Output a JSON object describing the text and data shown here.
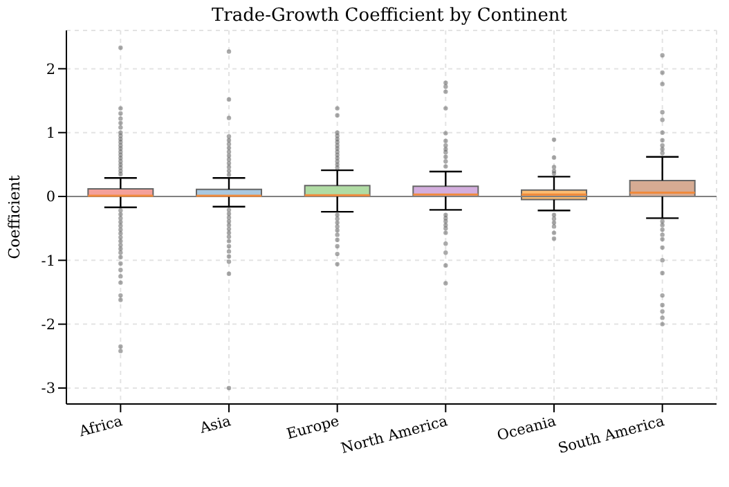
{
  "chart_data": {
    "type": "box",
    "title": "Trade-Growth Coefficient by Continent",
    "ylabel": "Coefficient",
    "categories": [
      "Africa",
      "Asia",
      "Europe",
      "North America",
      "Oceania",
      "South America"
    ],
    "colors": [
      "#f4a09a",
      "#a9c8e0",
      "#b0dca4",
      "#d4aede",
      "#fcbd72",
      "#d6ab93"
    ],
    "boxes": [
      {
        "low": -0.17,
        "q1": 0.0,
        "median": 0.01,
        "q3": 0.12,
        "high": 0.29,
        "outliers": [
          2.33,
          1.38,
          1.3,
          1.22,
          1.15,
          1.08,
          1.0,
          0.95,
          0.9,
          0.85,
          0.8,
          0.75,
          0.7,
          0.65,
          0.6,
          0.55,
          0.5,
          0.45,
          0.4,
          0.35,
          -0.22,
          -0.28,
          -0.34,
          -0.4,
          -0.46,
          -0.52,
          -0.58,
          -0.64,
          -0.7,
          -0.76,
          -0.82,
          -0.88,
          -0.95,
          -1.05,
          -1.15,
          -1.25,
          -1.35,
          -1.55,
          -1.62,
          -2.35,
          -2.42
        ]
      },
      {
        "low": -0.16,
        "q1": 0.0,
        "median": 0.01,
        "q3": 0.11,
        "high": 0.29,
        "outliers": [
          2.27,
          1.52,
          1.23,
          0.94,
          0.88,
          0.82,
          0.76,
          0.7,
          0.64,
          0.58,
          0.52,
          0.46,
          0.4,
          0.34,
          -0.21,
          -0.27,
          -0.33,
          -0.39,
          -0.45,
          -0.51,
          -0.57,
          -0.63,
          -0.7,
          -0.78,
          -0.86,
          -0.94,
          -1.02,
          -1.21,
          -3.0
        ]
      },
      {
        "low": -0.24,
        "q1": 0.0,
        "median": 0.02,
        "q3": 0.17,
        "high": 0.41,
        "outliers": [
          1.38,
          1.27,
          1.0,
          0.95,
          0.9,
          0.85,
          0.8,
          0.75,
          0.7,
          0.65,
          0.6,
          0.55,
          0.5,
          0.45,
          -0.29,
          -0.35,
          -0.41,
          -0.47,
          -0.53,
          -0.6,
          -0.68,
          -0.78,
          -0.9,
          -1.06
        ]
      },
      {
        "low": -0.21,
        "q1": 0.0,
        "median": 0.03,
        "q3": 0.16,
        "high": 0.39,
        "outliers": [
          1.78,
          1.72,
          1.64,
          1.38,
          0.99,
          0.87,
          0.8,
          0.74,
          0.69,
          0.62,
          0.55,
          0.47,
          -0.29,
          -0.34,
          -0.39,
          -0.45,
          -0.5,
          -0.57,
          -0.74,
          -0.88,
          -1.08,
          -1.36
        ]
      },
      {
        "low": -0.22,
        "q1": -0.05,
        "median": 0.03,
        "q3": 0.1,
        "high": 0.31,
        "outliers": [
          0.89,
          0.61,
          0.46,
          0.4,
          0.36,
          -0.29,
          -0.35,
          -0.41,
          -0.47,
          -0.57,
          -0.66
        ]
      },
      {
        "low": -0.34,
        "q1": 0.0,
        "median": 0.06,
        "q3": 0.25,
        "high": 0.62,
        "outliers": [
          2.21,
          1.94,
          1.76,
          1.32,
          1.2,
          1.0,
          0.88,
          0.8,
          0.74,
          0.68,
          -0.39,
          -0.45,
          -0.52,
          -0.6,
          -0.67,
          -0.8,
          -1.0,
          -1.2,
          -1.55,
          -1.7,
          -1.8,
          -1.9,
          -2.0
        ]
      }
    ],
    "ylim": [
      -3.25,
      2.6
    ],
    "yticks": [
      -3,
      -2,
      -1,
      0,
      1,
      2
    ],
    "grid": true,
    "ref_lines": [
      {
        "axis": "y",
        "value": 0,
        "color": "#808080"
      }
    ]
  }
}
